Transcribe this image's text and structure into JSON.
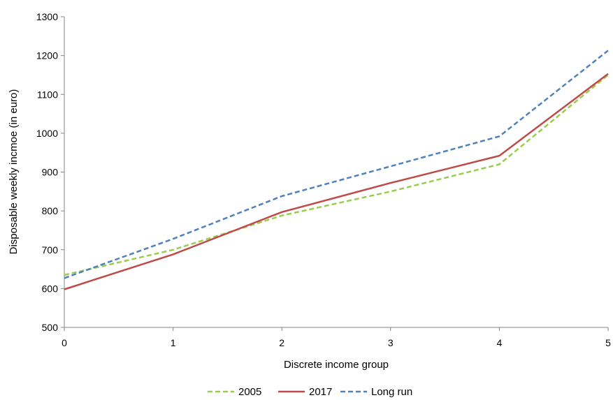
{
  "chart_data": {
    "type": "line",
    "title": "",
    "xlabel": "Discrete income group",
    "ylabel": "Disposable weekly incmoe (in euro)",
    "x": [
      0,
      1,
      2,
      3,
      4,
      5
    ],
    "x_ticks": [
      "0",
      "1",
      "2",
      "3",
      "4",
      "5"
    ],
    "xlim": [
      0,
      5
    ],
    "ylim": [
      500,
      1300
    ],
    "y_ticks": [
      "500",
      "600",
      "700",
      "800",
      "900",
      "1000",
      "1100",
      "1200",
      "1300"
    ],
    "grid": false,
    "legend_position": "bottom",
    "series": [
      {
        "name": "2005",
        "values": [
          635,
          700,
          788,
          850,
          920,
          1150
        ],
        "color": "#9acd4c",
        "dash": "dashed"
      },
      {
        "name": "2017",
        "values": [
          598,
          688,
          797,
          872,
          942,
          1153
        ],
        "color": "#be4b48",
        "dash": "solid"
      },
      {
        "name": "Long run",
        "values": [
          627,
          728,
          838,
          915,
          992,
          1213
        ],
        "color": "#4f81bd",
        "dash": "dashed"
      }
    ]
  }
}
